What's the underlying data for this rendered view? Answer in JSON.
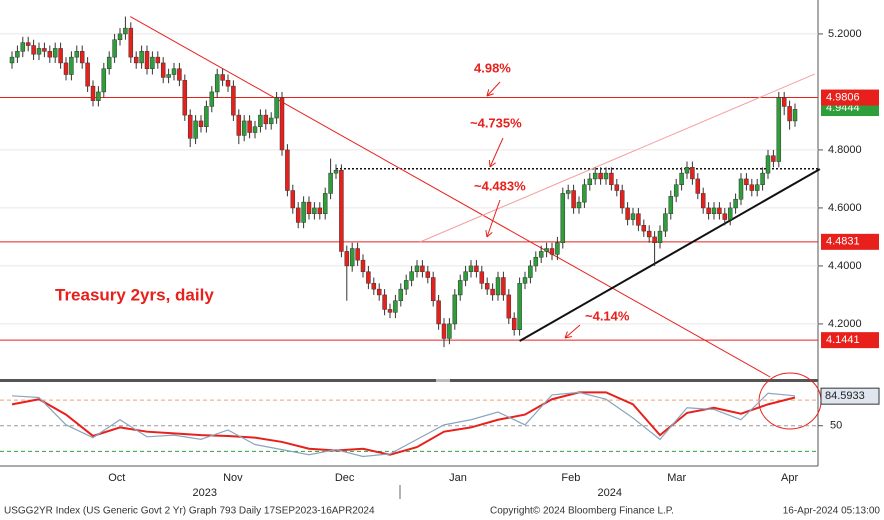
{
  "chart_data": [
    {
      "type": "candlestick",
      "open": [
        5.1,
        5.12,
        5.14,
        5.17,
        5.16,
        5.13,
        5.15,
        5.14,
        5.12,
        5.15,
        5.1,
        5.06,
        5.12,
        5.14,
        5.1,
        5.02,
        4.97,
        5.0,
        5.08,
        5.12,
        5.18,
        5.2,
        5.22,
        5.12,
        5.1,
        5.14,
        5.08,
        5.12,
        5.1,
        5.05,
        5.06,
        5.08,
        5.04,
        4.92,
        4.84,
        4.9,
        4.88,
        4.95,
        5.0,
        5.06,
        5.04,
        5.02,
        4.92,
        4.85,
        4.9,
        4.86,
        4.88,
        4.92,
        4.89,
        4.91,
        4.98,
        4.8,
        4.66,
        4.6,
        4.55,
        4.62,
        4.58,
        4.6,
        4.58,
        4.65,
        4.72,
        4.73,
        4.45,
        4.4,
        4.46,
        4.42,
        4.38,
        4.34,
        4.32,
        4.3,
        4.25,
        4.24,
        4.28,
        4.32,
        4.35,
        4.38,
        4.4,
        4.38,
        4.36,
        4.28,
        4.2,
        4.15,
        4.2,
        4.3,
        4.35,
        4.38,
        4.4,
        4.38,
        4.34,
        4.32,
        4.3,
        4.36,
        4.3,
        4.22,
        4.18,
        4.34,
        4.36,
        4.4,
        4.43,
        4.45,
        4.46,
        4.44,
        4.48,
        4.65,
        4.66,
        4.6,
        4.62,
        4.68,
        4.7,
        4.72,
        4.7,
        4.72,
        4.68,
        4.66,
        4.6,
        4.56,
        4.58,
        4.54,
        4.52,
        4.5,
        4.48,
        4.52,
        4.58,
        4.64,
        4.68,
        4.72,
        4.74,
        4.7,
        4.65,
        4.6,
        4.58,
        4.6,
        4.58,
        4.56,
        4.6,
        4.63,
        4.7,
        4.68,
        4.66,
        4.68,
        4.72,
        4.78,
        4.76,
        4.98,
        4.95,
        4.9
      ],
      "high": [
        5.14,
        5.16,
        5.19,
        5.19,
        5.18,
        5.17,
        5.17,
        5.16,
        5.17,
        5.17,
        5.12,
        5.14,
        5.16,
        5.16,
        5.12,
        5.04,
        5.02,
        5.1,
        5.14,
        5.2,
        5.22,
        5.26,
        5.24,
        5.14,
        5.16,
        5.16,
        5.14,
        5.14,
        5.12,
        5.08,
        5.1,
        5.1,
        5.06,
        4.94,
        4.92,
        4.92,
        4.97,
        5.02,
        5.08,
        5.08,
        5.06,
        5.04,
        4.94,
        4.92,
        4.92,
        4.9,
        4.94,
        4.94,
        4.93,
        5.0,
        5.0,
        4.82,
        4.68,
        4.62,
        4.64,
        4.64,
        4.62,
        4.62,
        4.67,
        4.77,
        4.75,
        4.75,
        4.47,
        4.48,
        4.48,
        4.44,
        4.4,
        4.36,
        4.34,
        4.32,
        4.27,
        4.3,
        4.34,
        4.37,
        4.4,
        4.42,
        4.42,
        4.4,
        4.38,
        4.3,
        4.22,
        4.22,
        4.32,
        4.37,
        4.4,
        4.42,
        4.42,
        4.4,
        4.36,
        4.34,
        4.38,
        4.38,
        4.32,
        4.24,
        4.36,
        4.38,
        4.42,
        4.45,
        4.47,
        4.48,
        4.48,
        4.5,
        4.67,
        4.68,
        4.68,
        4.64,
        4.7,
        4.72,
        4.74,
        4.74,
        4.74,
        4.74,
        4.7,
        4.68,
        4.62,
        4.6,
        4.6,
        4.56,
        4.54,
        4.52,
        4.54,
        4.6,
        4.66,
        4.7,
        4.74,
        4.76,
        4.76,
        4.72,
        4.67,
        4.62,
        4.62,
        4.62,
        4.6,
        4.62,
        4.65,
        4.72,
        4.72,
        4.7,
        4.7,
        4.74,
        4.8,
        4.8,
        5.0,
        5.0,
        4.97,
        4.96
      ],
      "low": [
        5.08,
        5.1,
        5.12,
        5.14,
        5.11,
        5.11,
        5.12,
        5.1,
        5.1,
        5.08,
        5.04,
        5.04,
        5.1,
        5.08,
        5.0,
        4.95,
        4.95,
        4.98,
        5.06,
        5.1,
        5.16,
        5.18,
        5.1,
        5.08,
        5.08,
        5.06,
        5.06,
        5.08,
        5.03,
        5.03,
        5.04,
        5.02,
        4.9,
        4.81,
        4.82,
        4.86,
        4.86,
        4.93,
        4.98,
        5.02,
        5.0,
        4.9,
        4.82,
        4.83,
        4.84,
        4.84,
        4.86,
        4.87,
        4.87,
        4.89,
        4.78,
        4.64,
        4.58,
        4.53,
        4.53,
        4.56,
        4.56,
        4.56,
        4.56,
        4.63,
        4.7,
        4.43,
        4.28,
        4.38,
        4.4,
        4.36,
        4.32,
        4.3,
        4.28,
        4.23,
        4.22,
        4.22,
        4.26,
        4.3,
        4.33,
        4.36,
        4.36,
        4.34,
        4.26,
        4.18,
        4.12,
        4.13,
        4.18,
        4.28,
        4.33,
        4.36,
        4.36,
        4.32,
        4.3,
        4.28,
        4.28,
        4.28,
        4.2,
        4.16,
        4.16,
        4.32,
        4.34,
        4.38,
        4.41,
        4.43,
        4.42,
        4.42,
        4.46,
        4.63,
        4.58,
        4.58,
        4.6,
        4.66,
        4.68,
        4.68,
        4.68,
        4.66,
        4.64,
        4.58,
        4.54,
        4.54,
        4.52,
        4.5,
        4.48,
        4.4,
        4.46,
        4.5,
        4.56,
        4.62,
        4.66,
        4.7,
        4.68,
        4.63,
        4.58,
        4.56,
        4.56,
        4.56,
        4.54,
        4.54,
        4.58,
        4.61,
        4.66,
        4.64,
        4.64,
        4.66,
        4.7,
        4.74,
        4.74,
        4.92,
        4.87,
        4.88
      ],
      "close": [
        5.12,
        5.14,
        5.17,
        5.16,
        5.13,
        5.15,
        5.14,
        5.12,
        5.15,
        5.1,
        5.06,
        5.12,
        5.14,
        5.1,
        5.02,
        4.97,
        5.0,
        5.08,
        5.12,
        5.18,
        5.2,
        5.22,
        5.12,
        5.1,
        5.14,
        5.08,
        5.12,
        5.1,
        5.05,
        5.06,
        5.08,
        5.04,
        4.92,
        4.84,
        4.9,
        4.88,
        4.95,
        5.0,
        5.06,
        5.04,
        5.02,
        4.92,
        4.85,
        4.9,
        4.86,
        4.88,
        4.92,
        4.89,
        4.91,
        4.98,
        4.8,
        4.66,
        4.6,
        4.55,
        4.62,
        4.58,
        4.6,
        4.58,
        4.65,
        4.72,
        4.73,
        4.45,
        4.4,
        4.46,
        4.42,
        4.38,
        4.34,
        4.32,
        4.3,
        4.25,
        4.24,
        4.28,
        4.32,
        4.35,
        4.38,
        4.4,
        4.38,
        4.36,
        4.28,
        4.2,
        4.15,
        4.2,
        4.3,
        4.35,
        4.38,
        4.4,
        4.38,
        4.34,
        4.32,
        4.3,
        4.36,
        4.3,
        4.22,
        4.18,
        4.34,
        4.36,
        4.4,
        4.43,
        4.45,
        4.46,
        4.44,
        4.48,
        4.65,
        4.66,
        4.6,
        4.62,
        4.68,
        4.7,
        4.72,
        4.7,
        4.72,
        4.68,
        4.66,
        4.6,
        4.56,
        4.58,
        4.54,
        4.52,
        4.5,
        4.48,
        4.52,
        4.58,
        4.64,
        4.68,
        4.72,
        4.74,
        4.7,
        4.65,
        4.6,
        4.58,
        4.6,
        4.58,
        4.56,
        4.6,
        4.63,
        4.7,
        4.68,
        4.66,
        4.68,
        4.72,
        4.78,
        4.76,
        4.98,
        4.95,
        4.9,
        4.94
      ],
      "up_color": "#2e9e3a",
      "down_color": "#e8201c",
      "ylim": [
        4.017,
        5.317
      ],
      "yticks": [
        {
          "value": 5.2,
          "label": "5.2000"
        },
        {
          "value": 4.8,
          "label": "4.8000"
        },
        {
          "value": 4.6,
          "label": "4.6000"
        },
        {
          "value": 4.4,
          "label": "4.4000"
        },
        {
          "value": 4.2,
          "label": "4.2000"
        }
      ],
      "grid": true,
      "xticks": [
        {
          "value": 19.4,
          "label": "Oct"
        },
        {
          "value": 40.9,
          "label": "Nov"
        },
        {
          "value": 61.6,
          "label": "Dec"
        },
        {
          "value": 82.6,
          "label": "Jan"
        },
        {
          "value": 103.5,
          "label": "Feb"
        },
        {
          "value": 123.1,
          "label": "Mar"
        },
        {
          "value": 144,
          "label": "Apr"
        }
      ],
      "year_ticks": [
        {
          "value": 35.7,
          "label": "2023"
        },
        {
          "value": 110.7,
          "label": "2024"
        }
      ],
      "price_tags": [
        {
          "value": 4.9444,
          "color": "#2e9e3a",
          "line": false
        },
        {
          "value": 4.9806,
          "color": "#e8201c",
          "line": true
        },
        {
          "value": 4.4831,
          "color": "#e8201c",
          "line": true
        },
        {
          "value": 4.1441,
          "color": "#e8201c",
          "line": true
        }
      ],
      "dotted_lines": [
        {
          "value": 4.735,
          "x_from": 60
        }
      ],
      "trendlines": [
        {
          "x": [
            21.9,
            140.4
          ],
          "y": [
            5.26,
            4.017
          ],
          "color": "#e8201c"
        },
        {
          "x": [
            75.6,
            148.7
          ],
          "y": [
            4.483,
            5.062
          ],
          "color": "#f4a0a0"
        },
        {
          "x": [
            94,
            149.6
          ],
          "y": [
            4.141,
            4.734
          ],
          "color": "#111111"
        }
      ],
      "annotations": [
        "4.98%",
        "~4.735%",
        "~4.483%",
        "~4.14%",
        "Treasury 2yrs, daily"
      ]
    },
    {
      "type": "line",
      "x": [
        0,
        5,
        10,
        15,
        20,
        25,
        30,
        35,
        40,
        45,
        50,
        55,
        60,
        65,
        70,
        75,
        80,
        85,
        90,
        95,
        100,
        105,
        110,
        115,
        120,
        125,
        130,
        135,
        140,
        145
      ],
      "series": [
        {
          "color": "#e8201c",
          "values": [
            75,
            81,
            63,
            38,
            48,
            43,
            41,
            39,
            38,
            36,
            31,
            23,
            21,
            23,
            16,
            25,
            43,
            48,
            57,
            63,
            81,
            89,
            89,
            75,
            39,
            65,
            71,
            64,
            75,
            83
          ]
        },
        {
          "color": "#8aa5bd",
          "values": [
            85,
            83,
            51,
            36,
            57,
            37,
            39,
            34,
            45,
            28,
            22,
            16,
            22,
            14,
            17,
            34,
            51,
            57,
            66,
            51,
            86,
            89,
            81,
            59,
            34,
            71,
            69,
            57,
            88,
            85
          ]
        }
      ],
      "ylim": [
        4,
        100
      ],
      "yticks": [
        50
      ],
      "levels": [
        {
          "value": 80,
          "color": "#f0a070"
        },
        {
          "value": 50,
          "color": "#9a9a9a"
        },
        {
          "value": 20,
          "color": "#2e9e3a"
        }
      ],
      "last_tag": 84.5933
    }
  ],
  "footer": {
    "left": "USGG2YR Index (US Generic Govt 2 Yr) Graph 793  Daily 17SEP2023-16APR2024",
    "center": "Copyright© 2024 Bloomberg Finance L.P.",
    "right": "16-Apr-2024 05:13:00"
  }
}
